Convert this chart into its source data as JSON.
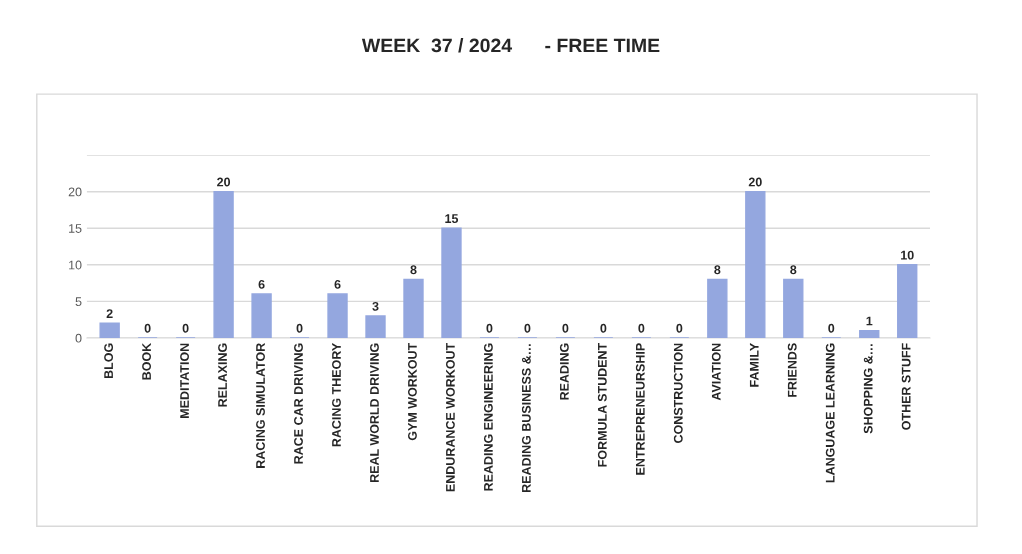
{
  "chart_data": {
    "type": "bar",
    "title": "WEEK  37 / 2024      - FREE TIME",
    "categories": [
      "BLOG",
      "BOOK",
      "MEDITATION",
      "RELAXING",
      "RACING SIMULATOR",
      "RACE CAR DRIVING",
      "RACING THEORY",
      "REAL WORLD DRIVING",
      "GYM WORKOUT",
      "ENDURANCE WORKOUT",
      "READING ENGINEERING",
      "READING BUSINESS &…",
      "READING",
      "FORMULA STUDENT",
      "ENTREPRENEURSHIP",
      "CONSTRUCTION",
      "AVIATION",
      "FAMILY",
      "FRIENDS",
      "LANGUAGE LEARNING",
      "SHOPPING &…",
      "OTHER STUFF"
    ],
    "values": [
      2,
      0,
      0,
      20,
      6,
      0,
      6,
      3,
      8,
      15,
      0,
      0,
      0,
      0,
      0,
      0,
      8,
      20,
      8,
      0,
      1,
      10
    ],
    "color": "#94a7df",
    "ylim": [
      0,
      25
    ],
    "yticks": [
      0,
      5,
      10,
      15,
      20,
      {
        "value": 25,
        "label": null
      }
    ],
    "grid": "y",
    "data_labels": true
  }
}
